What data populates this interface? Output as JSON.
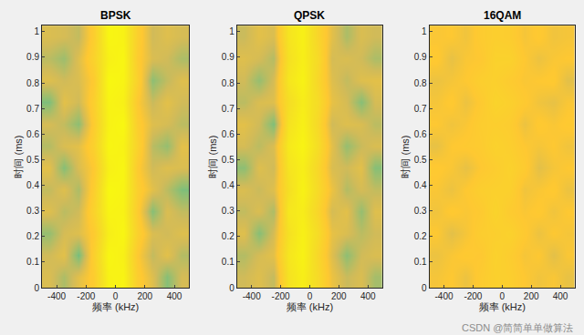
{
  "chart_data": [
    {
      "type": "heatmap",
      "title": "BPSK",
      "x_label": "频率 (kHz)",
      "y_label": "时间 (ms)",
      "x": [
        -450,
        -350,
        -250,
        -150,
        -50,
        50,
        150,
        250,
        350,
        450
      ],
      "y": [
        0.043,
        0.128,
        0.213,
        0.299,
        0.384,
        0.469,
        0.555,
        0.64,
        0.725,
        0.811,
        0.896,
        0.981
      ],
      "z": [
        [
          0.62,
          0.55,
          0.64,
          0.72,
          0.95,
          0.96,
          0.73,
          0.63,
          0.5,
          0.61
        ],
        [
          0.6,
          0.64,
          0.48,
          0.74,
          0.97,
          0.94,
          0.7,
          0.58,
          0.64,
          0.56
        ],
        [
          0.52,
          0.61,
          0.63,
          0.71,
          0.93,
          0.97,
          0.75,
          0.62,
          0.6,
          0.63
        ],
        [
          0.63,
          0.57,
          0.6,
          0.76,
          0.96,
          0.95,
          0.72,
          0.5,
          0.62,
          0.58
        ],
        [
          0.58,
          0.63,
          0.55,
          0.73,
          0.98,
          0.96,
          0.74,
          0.64,
          0.57,
          0.49
        ],
        [
          0.64,
          0.5,
          0.62,
          0.7,
          0.94,
          0.97,
          0.71,
          0.6,
          0.63,
          0.62
        ],
        [
          0.56,
          0.62,
          0.64,
          0.75,
          0.97,
          0.95,
          0.76,
          0.57,
          0.52,
          0.64
        ],
        [
          0.61,
          0.58,
          0.51,
          0.72,
          0.95,
          0.98,
          0.73,
          0.63,
          0.61,
          0.57
        ],
        [
          0.49,
          0.64,
          0.6,
          0.74,
          0.96,
          0.94,
          0.7,
          0.59,
          0.64,
          0.6
        ],
        [
          0.63,
          0.6,
          0.62,
          0.71,
          0.98,
          0.96,
          0.75,
          0.51,
          0.58,
          0.63
        ],
        [
          0.57,
          0.53,
          0.63,
          0.76,
          0.94,
          0.97,
          0.72,
          0.62,
          0.6,
          0.55
        ],
        [
          0.62,
          0.61,
          0.58,
          0.73,
          0.97,
          0.95,
          0.74,
          0.6,
          0.63,
          0.61
        ]
      ],
      "zlim": [
        0,
        1
      ],
      "xlim": [
        -500,
        500
      ],
      "xticks": [
        -400,
        -200,
        0,
        200,
        400
      ],
      "ylim": [
        0,
        1.024
      ],
      "yticks": [
        0,
        0.1,
        0.2,
        0.3,
        0.4,
        0.5,
        0.6,
        0.7,
        0.8,
        0.9,
        1
      ]
    },
    {
      "type": "heatmap",
      "title": "QPSK",
      "x_label": "频率 (kHz)",
      "y_label": "时间 (ms)",
      "x": [
        -450,
        -350,
        -250,
        -150,
        -50,
        50,
        150,
        250,
        350,
        450
      ],
      "y": [
        0.043,
        0.128,
        0.213,
        0.299,
        0.384,
        0.469,
        0.555,
        0.64,
        0.725,
        0.811,
        0.896,
        0.981
      ],
      "z": [
        [
          0.6,
          0.63,
          0.58,
          0.86,
          0.93,
          0.82,
          0.66,
          0.59,
          0.62,
          0.54
        ],
        [
          0.56,
          0.61,
          0.64,
          0.88,
          0.95,
          0.8,
          0.63,
          0.51,
          0.6,
          0.62
        ],
        [
          0.63,
          0.5,
          0.61,
          0.85,
          0.94,
          0.83,
          0.65,
          0.62,
          0.57,
          0.6
        ],
        [
          0.58,
          0.62,
          0.55,
          0.89,
          0.92,
          0.79,
          0.61,
          0.64,
          0.52,
          0.63
        ],
        [
          0.62,
          0.59,
          0.63,
          0.84,
          0.95,
          0.82,
          0.66,
          0.56,
          0.61,
          0.58
        ],
        [
          0.51,
          0.63,
          0.6,
          0.87,
          0.93,
          0.8,
          0.62,
          0.6,
          0.64,
          0.5
        ],
        [
          0.61,
          0.57,
          0.62,
          0.9,
          0.96,
          0.84,
          0.64,
          0.52,
          0.59,
          0.62
        ],
        [
          0.64,
          0.6,
          0.49,
          0.86,
          0.94,
          0.81,
          0.6,
          0.63,
          0.62,
          0.57
        ],
        [
          0.57,
          0.62,
          0.63,
          0.83,
          0.92,
          0.83,
          0.65,
          0.61,
          0.5,
          0.61
        ],
        [
          0.6,
          0.52,
          0.61,
          0.88,
          0.95,
          0.8,
          0.63,
          0.58,
          0.63,
          0.64
        ],
        [
          0.63,
          0.61,
          0.56,
          0.85,
          0.93,
          0.82,
          0.61,
          0.62,
          0.6,
          0.55
        ],
        [
          0.59,
          0.64,
          0.62,
          0.87,
          0.94,
          0.79,
          0.64,
          0.55,
          0.62,
          0.6
        ]
      ],
      "zlim": [
        0,
        1
      ],
      "xlim": [
        -500,
        500
      ],
      "xticks": [
        -400,
        -200,
        0,
        200,
        400
      ],
      "ylim": [
        0,
        1.024
      ],
      "yticks": [
        0,
        0.1,
        0.2,
        0.3,
        0.4,
        0.5,
        0.6,
        0.7,
        0.8,
        0.9,
        1
      ]
    },
    {
      "type": "heatmap",
      "title": "16QAM",
      "x_label": "频率 (kHz)",
      "y_label": "时间 (ms)",
      "x": [
        -450,
        -350,
        -250,
        -150,
        -50,
        50,
        150,
        250,
        350,
        450
      ],
      "y": [
        0.043,
        0.128,
        0.213,
        0.299,
        0.384,
        0.469,
        0.555,
        0.64,
        0.725,
        0.811,
        0.896,
        0.981
      ],
      "z": [
        [
          0.68,
          0.7,
          0.66,
          0.72,
          0.75,
          0.74,
          0.7,
          0.67,
          0.69,
          0.65
        ],
        [
          0.66,
          0.69,
          0.71,
          0.7,
          0.76,
          0.73,
          0.68,
          0.7,
          0.64,
          0.69
        ],
        [
          0.7,
          0.64,
          0.68,
          0.73,
          0.74,
          0.76,
          0.71,
          0.66,
          0.7,
          0.68
        ],
        [
          0.67,
          0.71,
          0.69,
          0.71,
          0.77,
          0.72,
          0.69,
          0.71,
          0.67,
          0.7
        ],
        [
          0.69,
          0.66,
          0.7,
          0.74,
          0.75,
          0.75,
          0.67,
          0.69,
          0.71,
          0.66
        ],
        [
          0.71,
          0.69,
          0.65,
          0.7,
          0.73,
          0.76,
          0.72,
          0.64,
          0.68,
          0.7
        ],
        [
          0.65,
          0.7,
          0.71,
          0.72,
          0.76,
          0.74,
          0.7,
          0.68,
          0.7,
          0.67
        ],
        [
          0.7,
          0.67,
          0.69,
          0.73,
          0.74,
          0.73,
          0.66,
          0.71,
          0.69,
          0.71
        ],
        [
          0.68,
          0.71,
          0.66,
          0.71,
          0.77,
          0.75,
          0.71,
          0.67,
          0.65,
          0.69
        ],
        [
          0.66,
          0.68,
          0.7,
          0.74,
          0.75,
          0.72,
          0.69,
          0.7,
          0.71,
          0.64
        ],
        [
          0.71,
          0.65,
          0.69,
          0.7,
          0.76,
          0.76,
          0.7,
          0.66,
          0.69,
          0.7
        ],
        [
          0.69,
          0.7,
          0.67,
          0.72,
          0.74,
          0.73,
          0.68,
          0.71,
          0.67,
          0.68
        ]
      ],
      "zlim": [
        0,
        1
      ],
      "xlim": [
        -500,
        500
      ],
      "xticks": [
        -400,
        -200,
        0,
        200,
        400
      ],
      "ylim": [
        0,
        1.024
      ],
      "yticks": [
        0,
        0.1,
        0.2,
        0.3,
        0.4,
        0.5,
        0.6,
        0.7,
        0.8,
        0.9,
        1
      ]
    }
  ],
  "watermark": "CSDN @简简单单做算法"
}
